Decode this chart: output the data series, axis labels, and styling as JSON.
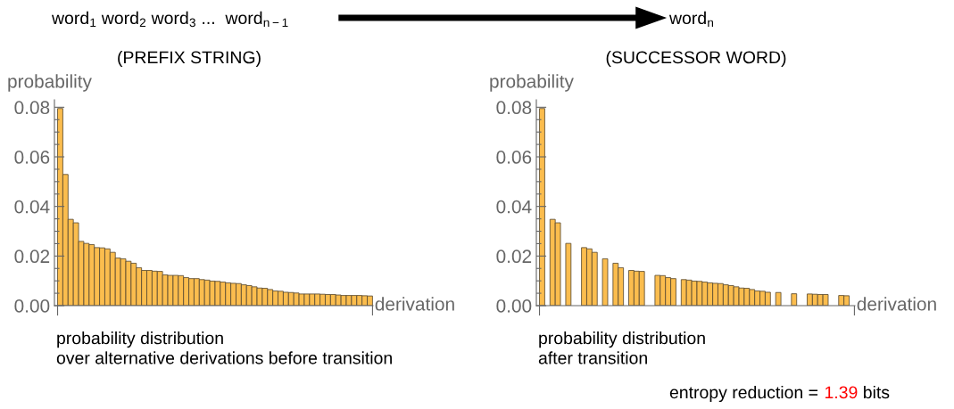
{
  "chart_data": [
    {
      "type": "other",
      "annotations": [
        "word$_{1}$ word$_{2}$ word$_{3}$ ...  word$_{n−1}$",
        "word$_{n}$",
        "(PREFIX STRING)",
        "(SUCCESSOR WORD)"
      ]
    },
    {
      "type": "bar",
      "xlabel": "derivation",
      "ylabel": "probability",
      "color": "#fbbd4e",
      "categories": [
        null,
        null,
        null,
        null,
        null,
        null,
        null,
        null,
        null,
        null,
        null,
        null,
        null,
        null,
        null,
        null,
        null,
        null,
        null,
        null,
        null,
        null,
        null,
        null,
        null,
        null,
        null,
        null,
        null,
        null,
        null,
        null,
        null,
        null,
        null,
        null,
        null,
        null,
        null,
        null,
        null,
        null,
        null,
        null,
        null,
        null,
        null,
        null,
        null,
        null,
        null,
        null,
        null,
        null,
        null,
        null,
        null,
        null,
        null,
        null
      ],
      "values": [
        0.0795,
        0.0529,
        0.0348,
        0.0334,
        0.0259,
        0.0251,
        0.0246,
        0.0234,
        0.0233,
        0.0229,
        0.0215,
        0.0192,
        0.0189,
        0.0179,
        0.0171,
        0.0153,
        0.0142,
        0.0142,
        0.0139,
        0.0138,
        0.0124,
        0.0122,
        0.0122,
        0.0121,
        0.0113,
        0.0109,
        0.0109,
        0.0105,
        0.0103,
        0.0099,
        0.0098,
        0.0095,
        0.0092,
        0.009,
        0.0089,
        0.0084,
        0.0081,
        0.0076,
        0.0071,
        0.007,
        0.0065,
        0.0059,
        0.0058,
        0.0054,
        0.0053,
        0.0051,
        0.0047,
        0.0047,
        0.0047,
        0.0047,
        0.0046,
        0.0045,
        0.0045,
        0.0043,
        0.0041,
        0.0041,
        0.0041,
        0.0041,
        0.004,
        0.0039
      ],
      "ylim": [
        0,
        0.083
      ],
      "yticks": [
        {
          "value": 0,
          "label": "0.00"
        },
        {
          "value": 0.005,
          "label": null
        },
        {
          "value": 0.01,
          "label": null
        },
        {
          "value": 0.015,
          "label": null
        },
        {
          "value": 0.02,
          "label": "0.02"
        },
        {
          "value": 0.025,
          "label": null
        },
        {
          "value": 0.03,
          "label": null
        },
        {
          "value": 0.035,
          "label": null
        },
        {
          "value": 0.04,
          "label": "0.04"
        },
        {
          "value": 0.045,
          "label": null
        },
        {
          "value": 0.05,
          "label": null
        },
        {
          "value": 0.055,
          "label": null
        },
        {
          "value": 0.06,
          "label": "0.06"
        },
        {
          "value": 0.065,
          "label": null
        },
        {
          "value": 0.07,
          "label": null
        },
        {
          "value": 0.075,
          "label": null
        },
        {
          "value": 0.08,
          "label": "0.08"
        }
      ],
      "annotations": [
        "probability distribution\nover alternative derivations before transition"
      ]
    },
    {
      "type": "bar",
      "xlabel": "derivation",
      "ylabel": "probability",
      "color": "#fbbd4e",
      "categories": [
        null,
        null,
        null,
        null,
        null,
        null,
        null,
        null,
        null,
        null,
        null,
        null,
        null,
        null,
        null,
        null,
        null,
        null,
        null,
        null,
        null,
        null,
        null,
        null,
        null,
        null,
        null,
        null,
        null,
        null,
        null,
        null,
        null,
        null,
        null,
        null,
        null,
        null,
        null,
        null,
        null,
        null,
        null,
        null,
        null,
        null,
        null,
        null,
        null,
        null,
        null,
        null,
        null,
        null,
        null,
        null,
        null,
        null,
        null,
        null
      ],
      "values": [
        0.0795,
        null,
        0.0348,
        0.0334,
        null,
        0.0251,
        null,
        null,
        0.0234,
        0.0229,
        0.0215,
        null,
        0.0189,
        null,
        0.0171,
        0.0153,
        null,
        0.0142,
        0.0139,
        0.0138,
        null,
        null,
        0.0122,
        0.0121,
        0.0113,
        0.0109,
        null,
        0.0105,
        0.0103,
        0.0099,
        0.0098,
        0.0095,
        0.0092,
        0.009,
        0.0089,
        0.0084,
        0.0081,
        0.0076,
        0.0071,
        0.007,
        0.0065,
        0.0059,
        0.0058,
        0.0054,
        null,
        0.0053,
        null,
        null,
        0.0048,
        null,
        null,
        0.0047,
        0.0046,
        0.0045,
        0.0045,
        null,
        null,
        0.0041,
        0.004,
        null
      ],
      "ylim": [
        0,
        0.083
      ],
      "yticks": [
        {
          "value": 0,
          "label": "0.00"
        },
        {
          "value": 0.005,
          "label": null
        },
        {
          "value": 0.01,
          "label": null
        },
        {
          "value": 0.015,
          "label": null
        },
        {
          "value": 0.02,
          "label": "0.02"
        },
        {
          "value": 0.025,
          "label": null
        },
        {
          "value": 0.03,
          "label": null
        },
        {
          "value": 0.035,
          "label": null
        },
        {
          "value": 0.04,
          "label": "0.04"
        },
        {
          "value": 0.045,
          "label": null
        },
        {
          "value": 0.05,
          "label": null
        },
        {
          "value": 0.055,
          "label": null
        },
        {
          "value": 0.06,
          "label": "0.06"
        },
        {
          "value": 0.065,
          "label": null
        },
        {
          "value": 0.07,
          "label": null
        },
        {
          "value": 0.075,
          "label": null
        },
        {
          "value": 0.08,
          "label": "0.08"
        }
      ],
      "annotations": [
        "probability distribution\nafter transition",
        "entropy reduction = 1.39 bits"
      ]
    }
  ]
}
